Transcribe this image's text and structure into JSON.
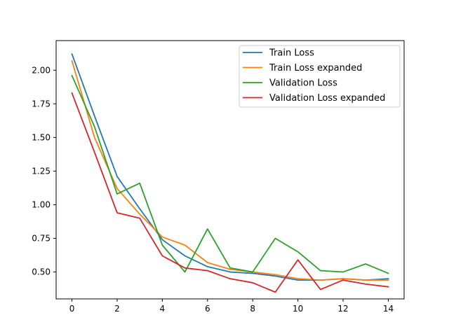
{
  "chart_data": {
    "type": "line",
    "title": "",
    "xlabel": "",
    "ylabel": "",
    "xlim": [
      -0.7,
      14.7
    ],
    "ylim": [
      0.3,
      2.22
    ],
    "grid": false,
    "legend_position": "top-right",
    "x": [
      0,
      1,
      2,
      3,
      4,
      5,
      6,
      7,
      8,
      9,
      10,
      11,
      12,
      13,
      14
    ],
    "xticks": [
      0,
      2,
      4,
      6,
      8,
      10,
      12,
      14
    ],
    "xtick_labels": [
      "0",
      "2",
      "4",
      "6",
      "8",
      "10",
      "12",
      "14"
    ],
    "yticks": [
      0.5,
      0.75,
      1.0,
      1.25,
      1.5,
      1.75,
      2.0
    ],
    "ytick_labels": [
      "0.50",
      "0.75",
      "1.00",
      "1.25",
      "1.50",
      "1.75",
      "2.00"
    ],
    "series": [
      {
        "name": "Train Loss",
        "color": "#1f77b4",
        "values": [
          2.12,
          1.66,
          1.21,
          0.97,
          0.74,
          0.62,
          0.54,
          0.5,
          0.49,
          0.47,
          0.44,
          0.44,
          0.45,
          0.44,
          0.45
        ]
      },
      {
        "name": "Train Loss expanded",
        "color": "#ff7f0e",
        "values": [
          2.07,
          1.5,
          1.12,
          0.93,
          0.76,
          0.7,
          0.57,
          0.52,
          0.5,
          0.48,
          0.45,
          0.44,
          0.45,
          0.44,
          0.44
        ]
      },
      {
        "name": "Validation Loss",
        "color": "#2ca02c",
        "values": [
          1.96,
          1.58,
          1.08,
          1.16,
          0.7,
          0.5,
          0.82,
          0.53,
          0.5,
          0.75,
          0.65,
          0.51,
          0.5,
          0.56,
          0.49
        ]
      },
      {
        "name": "Validation Loss expanded",
        "color": "#d62728",
        "values": [
          1.83,
          1.39,
          0.94,
          0.9,
          0.62,
          0.53,
          0.51,
          0.45,
          0.42,
          0.35,
          0.59,
          0.37,
          0.44,
          0.41,
          0.39
        ]
      }
    ]
  }
}
